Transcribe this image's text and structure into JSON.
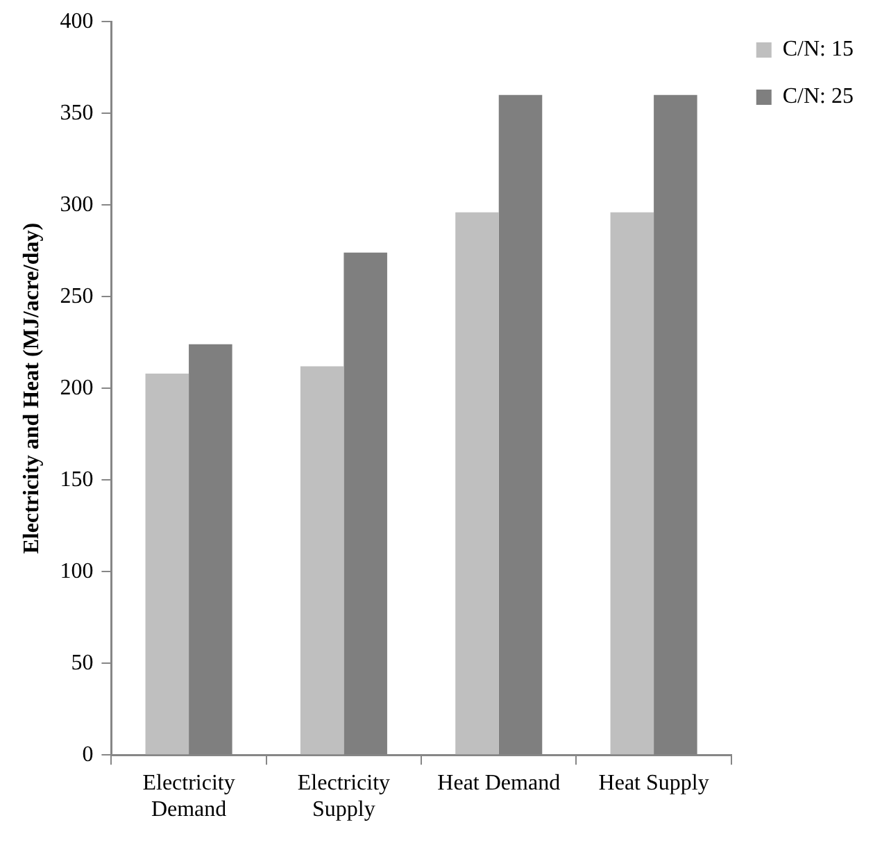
{
  "chart_data": {
    "type": "bar",
    "ylabel": "Electricity and Heat (MJ/acre/day)",
    "categories": [
      "Electricity Demand",
      "Electricity Supply",
      "Heat Demand",
      "Heat Supply"
    ],
    "series": [
      {
        "name": "C/N: 15",
        "color": "#bfbfbf",
        "values": [
          208,
          212,
          296,
          296
        ]
      },
      {
        "name": "C/N: 25",
        "color": "#7f7f7f",
        "values": [
          224,
          274,
          360,
          360
        ]
      }
    ],
    "ylim": [
      0,
      400
    ],
    "yticks": [
      0,
      50,
      100,
      150,
      200,
      250,
      300,
      350,
      400
    ],
    "grid": false,
    "legend": "top right"
  }
}
